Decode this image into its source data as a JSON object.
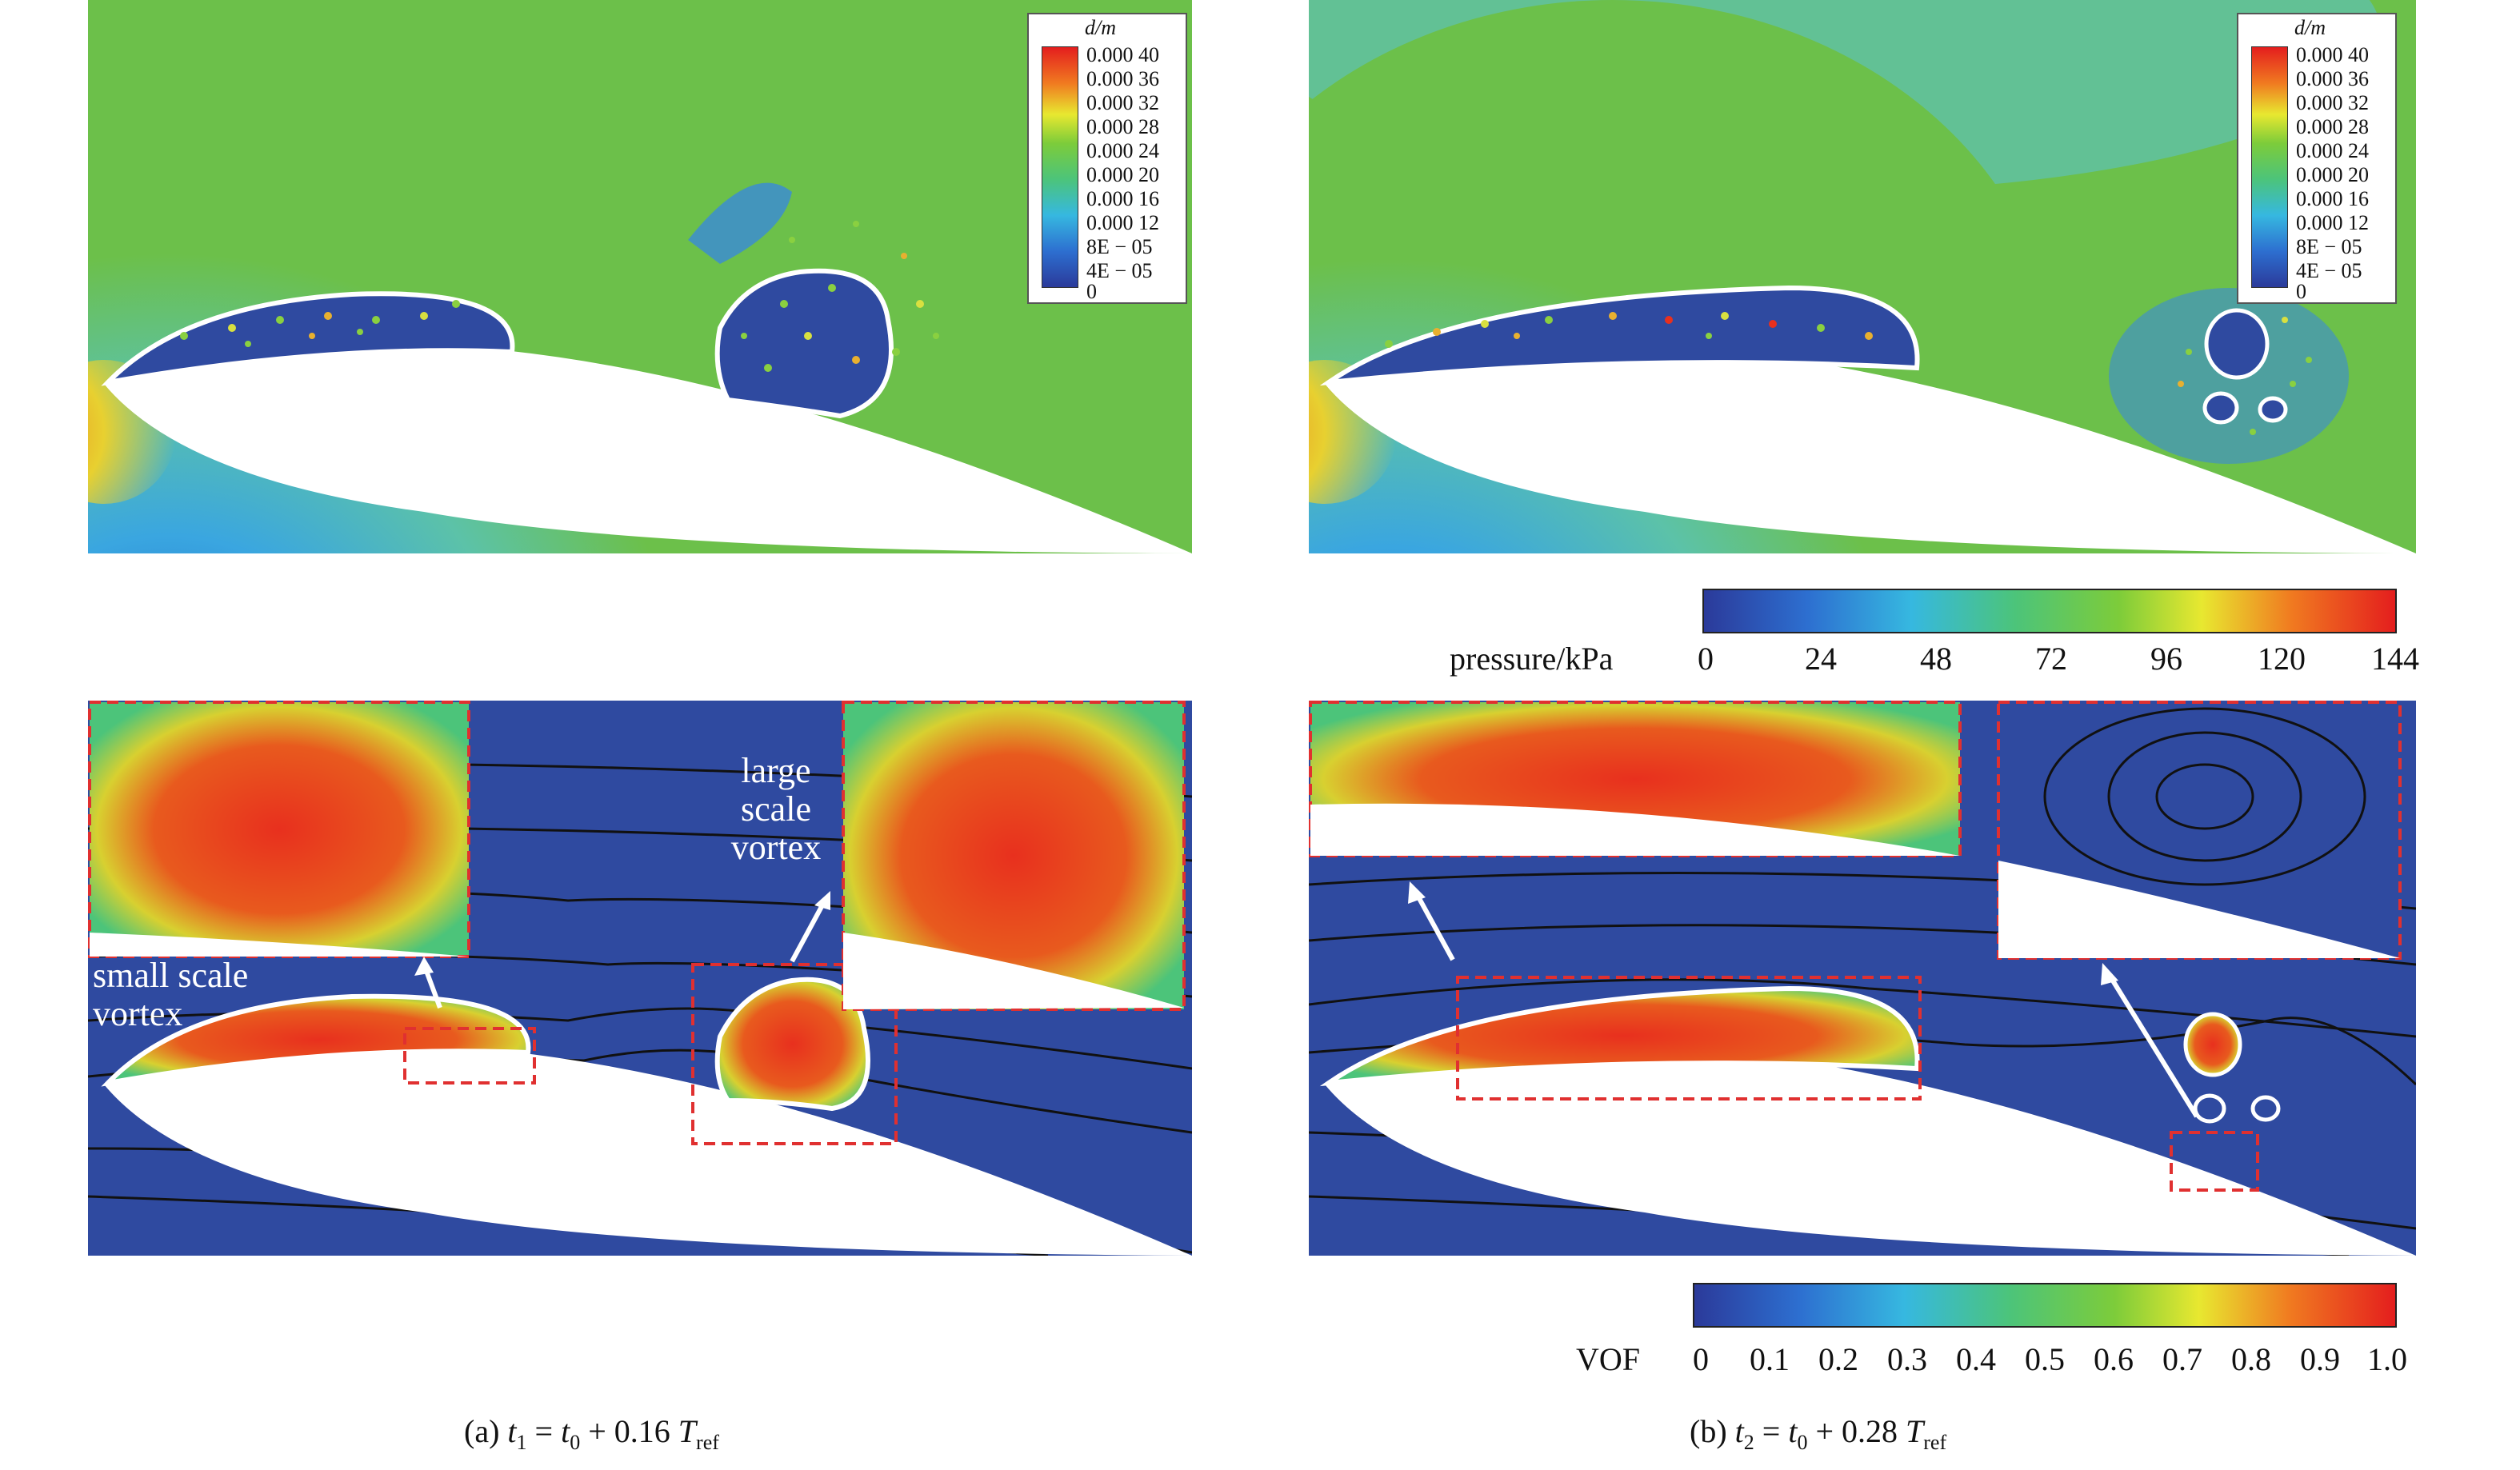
{
  "legend_top": {
    "title": "d/m",
    "labels": [
      "0.000 40",
      "0.000 36",
      "0.000 32",
      "0.000 28",
      "0.000 24",
      "0.000 20",
      "0.000 16",
      "0.000 12",
      "8E − 05",
      "4E − 05",
      "0"
    ]
  },
  "pressure_bar": {
    "title": "pressure/kPa",
    "ticks": [
      "0",
      "24",
      "48",
      "72",
      "96",
      "120",
      "144"
    ]
  },
  "vof_bar": {
    "title": "VOF",
    "ticks": [
      "0",
      "0.1",
      "0.2",
      "0.3",
      "0.4",
      "0.5",
      "0.6",
      "0.7",
      "0.8",
      "0.9",
      "1.0"
    ]
  },
  "annotations": {
    "large_vortex": [
      "large",
      "scale",
      "vortex"
    ],
    "small_vortex": [
      "small scale",
      "vortex"
    ]
  },
  "captions": {
    "a": {
      "prefix": "(a) ",
      "t1": "t",
      "t1_sub": "1",
      "eq": " = ",
      "t0": "t",
      "t0_sub": "0",
      "rest": " + 0.16 ",
      "T": "T",
      "T_sub": "ref"
    },
    "b": {
      "prefix": "(b) ",
      "t1": "t",
      "t1_sub": "2",
      "eq": " = ",
      "t0": "t",
      "t0_sub": "0",
      "rest": " + 0.28 ",
      "T": "T",
      "T_sub": "ref"
    }
  },
  "colors": {
    "field_blue": "#2f4aa0",
    "field_green": "#6cc04a",
    "vof_red": "#e8301e",
    "dashed_box": "#e03030"
  }
}
